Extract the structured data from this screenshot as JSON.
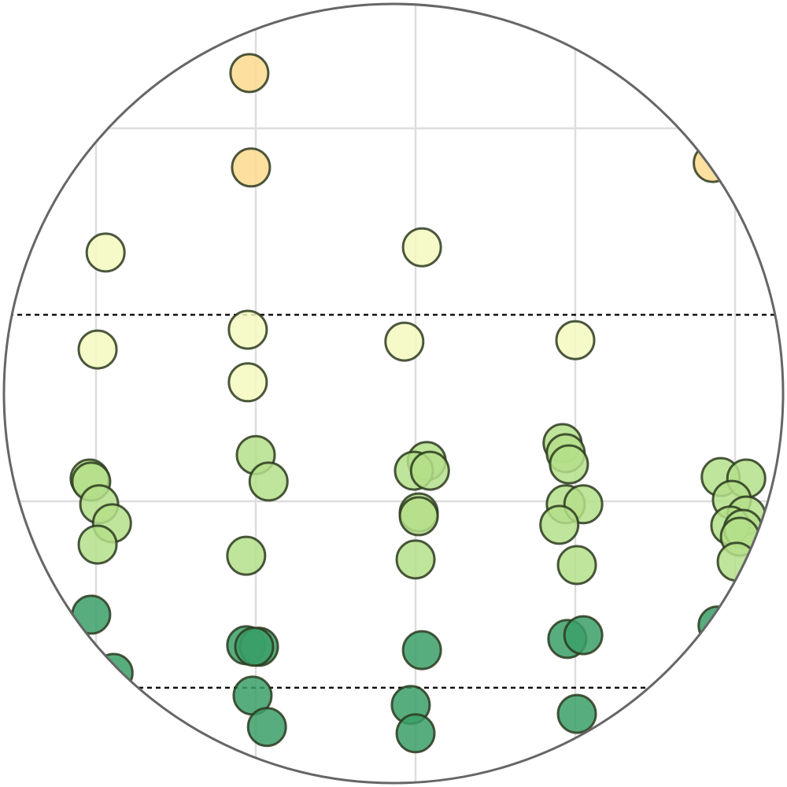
{
  "chart_data": {
    "type": "scatter",
    "xlim": [
      -0.601,
      4.325
    ],
    "ylim": [
      -0.766,
      1.344
    ],
    "xticks": [
      0,
      1,
      2,
      3,
      4
    ],
    "yticks": [
      0,
      1
    ],
    "grid": true,
    "hlines": [
      0.5,
      -0.5
    ],
    "series": [
      {
        "color": "#fdd98f",
        "x": [
          0.96,
          0.97,
          3.86
        ],
        "values": [
          1.148,
          0.895,
          0.907
        ]
      },
      {
        "color": "#f4f9c0",
        "x": [
          0.06,
          2.04,
          0.01,
          0.95,
          0.95,
          1.93,
          3.0
        ],
        "values": [
          0.667,
          0.681,
          0.407,
          0.46,
          0.319,
          0.428,
          0.432
        ]
      },
      {
        "color": "#b4df8a",
        "x": [
          -0.04,
          -0.03,
          0.02,
          0.1,
          0.01,
          1.0,
          1.08,
          0.94,
          2.07,
          1.99,
          2.09,
          2.02,
          2.02,
          2.0,
          2.92,
          2.94,
          2.96,
          2.94,
          3.05,
          2.9,
          3.01,
          3.91,
          4.07,
          3.98,
          4.07,
          3.97,
          4.05,
          4.03,
          4.01
        ],
        "values": [
          0.061,
          0.053,
          -0.008,
          -0.059,
          -0.116,
          0.124,
          0.053,
          -0.146,
          0.108,
          0.082,
          0.082,
          -0.03,
          -0.04,
          -0.156,
          0.156,
          0.129,
          0.099,
          -0.008,
          -0.008,
          -0.063,
          -0.171,
          0.065,
          0.061,
          0.004,
          -0.038,
          -0.065,
          -0.074,
          -0.095,
          -0.162
        ]
      },
      {
        "color": "#3b9f68",
        "x": [
          -0.03,
          0.11,
          0.94,
          1.02,
          0.99,
          2.04,
          0.98,
          1.07,
          1.97,
          2.0,
          2.95,
          3.05,
          3.01,
          3.89
        ],
        "values": [
          -0.304,
          -0.46,
          -0.386,
          -0.39,
          -0.39,
          -0.399,
          -0.521,
          -0.605,
          -0.546,
          -0.622,
          -0.369,
          -0.359,
          -0.57,
          -0.333
        ]
      }
    ]
  }
}
